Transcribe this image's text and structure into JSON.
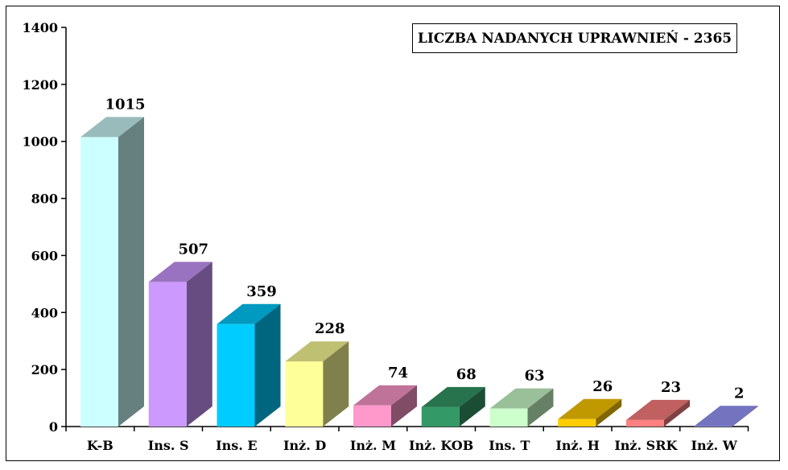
{
  "chart_data": {
    "type": "bar",
    "title": "LICZBA NADANYCH UPRAWNIEŃ - 2365",
    "categories": [
      "K-B",
      "Ins. S",
      "Ins. E",
      "Inż. D",
      "Inż. M",
      "Inż. KOB",
      "Ins. T",
      "Inż. H",
      "Inż. SRK",
      "Inż. W"
    ],
    "values": [
      1015,
      507,
      359,
      228,
      74,
      68,
      63,
      26,
      23,
      2
    ],
    "data_labels": [
      "1015",
      "507",
      "359",
      "228",
      "74",
      "68",
      "63",
      "26",
      "23",
      "2"
    ],
    "ylim": [
      0,
      1400
    ],
    "yticks": [
      0,
      200,
      400,
      600,
      800,
      1000,
      1200,
      1400
    ],
    "ytick_labels": [
      "0",
      "200",
      "400",
      "600",
      "800",
      "1000",
      "1200",
      "1400"
    ],
    "xlabel": "",
    "ylabel": "",
    "grid": false,
    "style": "3d-bar",
    "colors": {
      "front": [
        "#CCFFFF",
        "#CC99FF",
        "#00CCFF",
        "#FFFF99",
        "#FF99CC",
        "#339966",
        "#CCFFCC",
        "#FFCC00",
        "#FF8080",
        "#9999FF"
      ],
      "top": [
        "#99BBBB",
        "#9A73C0",
        "#0099C0",
        "#C0C073",
        "#C07399",
        "#26734D",
        "#99C099",
        "#C09900",
        "#C06060",
        "#7373C0"
      ],
      "side": [
        "#668080",
        "#664C80",
        "#006680",
        "#80804C",
        "#804C66",
        "#1A4D33",
        "#668066",
        "#806600",
        "#804040",
        "#4C4C80"
      ]
    }
  }
}
